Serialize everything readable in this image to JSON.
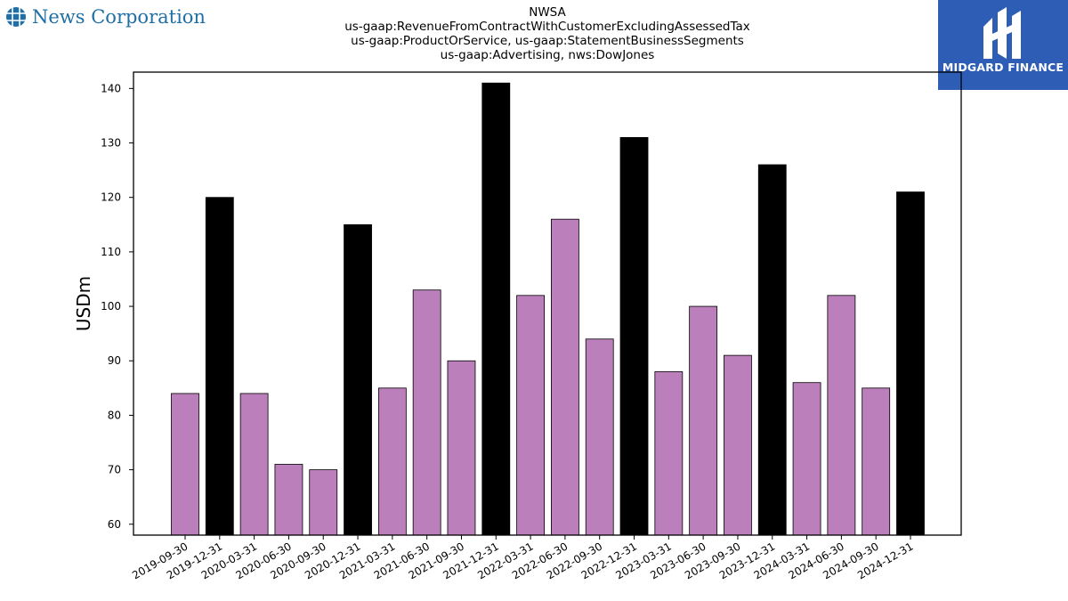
{
  "header": {
    "left_logo_text": "News Corporation",
    "right_logo_text": "MIDGARD FINANCE",
    "right_logo_color": "#2d5db5"
  },
  "chart_data": {
    "type": "bar",
    "title_lines": [
      "NWSA",
      "us-gaap:RevenueFromContractWithCustomerExcludingAssessedTax",
      "us-gaap:ProductOrService, us-gaap:StatementBusinessSegments",
      "us-gaap:Advertising, nws:DowJones"
    ],
    "xlabel": "",
    "ylabel": "USDm",
    "ylim": [
      58,
      143
    ],
    "yticks": [
      60,
      70,
      80,
      90,
      100,
      110,
      120,
      130,
      140
    ],
    "grid": false,
    "colors": {
      "quarter": "#bb7fbc",
      "year_end": "#000000",
      "edge": "#000000"
    },
    "categories": [
      "2019-09-30",
      "2019-12-31",
      "2020-03-31",
      "2020-06-30",
      "2020-09-30",
      "2020-12-31",
      "2021-03-31",
      "2021-06-30",
      "2021-09-30",
      "2021-12-31",
      "2022-03-31",
      "2022-06-30",
      "2022-09-30",
      "2022-12-31",
      "2023-03-31",
      "2023-06-30",
      "2023-09-30",
      "2023-12-31",
      "2024-03-31",
      "2024-06-30",
      "2024-09-30",
      "2024-12-31"
    ],
    "values": [
      84,
      120,
      84,
      71,
      70,
      115,
      85,
      103,
      90,
      141,
      102,
      116,
      94,
      131,
      88,
      100,
      91,
      126,
      86,
      102,
      85,
      121
    ],
    "year_end": [
      false,
      true,
      false,
      false,
      false,
      true,
      false,
      false,
      false,
      true,
      false,
      false,
      false,
      true,
      false,
      false,
      false,
      true,
      false,
      false,
      false,
      true
    ]
  }
}
